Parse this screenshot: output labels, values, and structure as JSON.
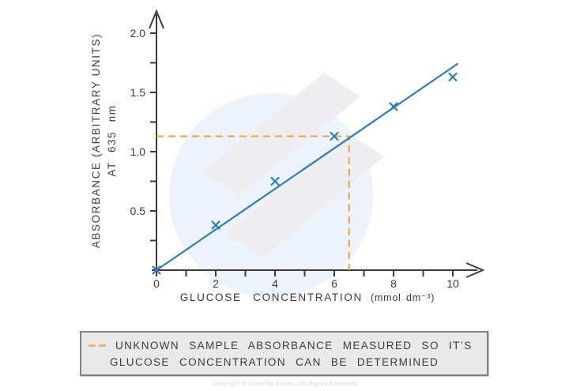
{
  "page": {
    "footer_copyright": "Copyright © Save My Exams. All Rights Reserved"
  },
  "chart_data": {
    "type": "scatter",
    "title": "",
    "xlabel": "GLUCOSE CONCENTRATION",
    "xlabel_units": "(mmol dm⁻³)",
    "ylabel": "ABSORBANCE (ARBITRARY  UNITS)",
    "ylabel_line2": "AT  635 nm",
    "xlim": [
      0,
      10.8
    ],
    "ylim": [
      0,
      2.15
    ],
    "grid": false,
    "legend_position": "bottom",
    "x_major_ticks": [
      0,
      2,
      4,
      6,
      8,
      10
    ],
    "x_tick_labels": [
      "0",
      "2",
      "4",
      "6",
      "8",
      "10"
    ],
    "x_minor_ticks": [
      1,
      3,
      5,
      7,
      9
    ],
    "y_major_ticks": [
      0.5,
      1.0,
      1.5,
      2.0
    ],
    "y_tick_labels": [
      "0.5",
      "1.0",
      "1.5",
      "2.0"
    ],
    "y_minor_ticks": [
      0.25,
      0.75,
      1.25,
      1.75
    ],
    "points": [
      {
        "x": 0,
        "y": 0
      },
      {
        "x": 2,
        "y": 0.38
      },
      {
        "x": 4,
        "y": 0.75
      },
      {
        "x": 6,
        "y": 1.13
      },
      {
        "x": 8,
        "y": 1.38
      },
      {
        "x": 10,
        "y": 1.63
      }
    ],
    "best_fit_line": {
      "x1": 0,
      "y1": 0,
      "x2": 10.15,
      "y2": 1.74
    },
    "unknown_sample_guide": {
      "absorbance_y": 1.13,
      "concentration_x": 6.5
    }
  },
  "legend": {
    "marker": "orange-dashed-line",
    "line1": "UNKNOWN  SAMPLE  ABSORBANCE  MEASURED  SO  IT’S",
    "line2": "GLUCOSE  CONCENTRATION  CAN  BE  DETERMINED"
  },
  "colors": {
    "line_blue": "#2d7cbb",
    "marker_blue": "#2d7cbb",
    "guide_orange": "#f0a238",
    "legend_dash": "#f4b169",
    "axis": "#3b3b3b",
    "text": "#3b3b3b",
    "legend_bg": "#e9e9e9",
    "legend_border": "#828282",
    "copyright": "#d2d2d2",
    "watermark_gray": "#eeeef1",
    "watermark_blue": "#ecf3fa"
  }
}
